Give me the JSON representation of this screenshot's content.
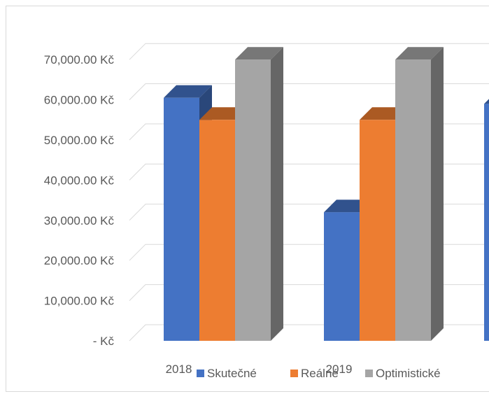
{
  "chart_data": {
    "type": "bar",
    "style": "3d-clustered-column",
    "categories": [
      "2018",
      "2019",
      ""
    ],
    "series": [
      {
        "name": "Skutečné",
        "values": [
          60500,
          32000,
          59000
        ],
        "color": "#4472C4"
      },
      {
        "name": "Reálné",
        "values": [
          55000,
          55000,
          null
        ],
        "color": "#ED7D31"
      },
      {
        "name": "Optimistické",
        "values": [
          70000,
          70000,
          null
        ],
        "color": "#A5A5A5"
      }
    ],
    "y_ticks": [
      {
        "value": 0,
        "label": "-   Kč"
      },
      {
        "value": 10000,
        "label": "10,000.00 Kč"
      },
      {
        "value": 20000,
        "label": "20,000.00 Kč"
      },
      {
        "value": 30000,
        "label": "30,000.00 Kč"
      },
      {
        "value": 40000,
        "label": "40,000.00 Kč"
      },
      {
        "value": 50000,
        "label": "50,000.00 Kč"
      },
      {
        "value": 60000,
        "label": "60,000.00 Kč"
      },
      {
        "value": 70000,
        "label": "70,000.00 Kč"
      }
    ],
    "ylim": [
      0,
      70000
    ],
    "grid": true,
    "legend_position": "bottom",
    "title": "",
    "xlabel": "",
    "ylabel": ""
  }
}
